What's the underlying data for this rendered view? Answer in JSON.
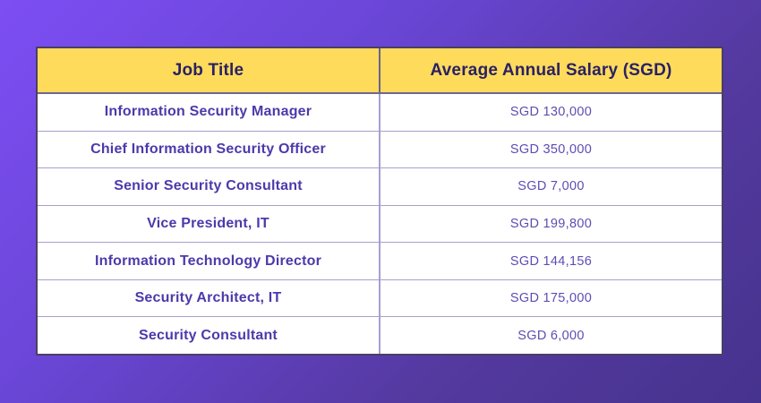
{
  "page": {
    "background_gradient_from": "#7D4EF4",
    "background_gradient_to": "#46338E",
    "header_bg_color": "#FFDB5C",
    "header_text_color": "#2A2163",
    "row_title_color": "#4D39AB",
    "row_salary_color": "#5D4DB3"
  },
  "table": {
    "columns": [
      {
        "label": "Job Title"
      },
      {
        "label": "Average Annual Salary (SGD)"
      }
    ],
    "rows": [
      {
        "title": "Information Security Manager",
        "salary": "SGD 130,000"
      },
      {
        "title": "Chief Information Security Officer",
        "salary": "SGD 350,000"
      },
      {
        "title": "Senior Security Consultant",
        "salary": "SGD 7,000"
      },
      {
        "title": "Vice President, IT",
        "salary": "SGD 199,800"
      },
      {
        "title": "Information Technology Director",
        "salary": "SGD 144,156"
      },
      {
        "title": "Security Architect, IT",
        "salary": "SGD 175,000"
      },
      {
        "title": "Security Consultant",
        "salary": "SGD 6,000"
      }
    ]
  },
  "chart_data": {
    "type": "table",
    "title": "",
    "columns": [
      "Job Title",
      "Average Annual Salary (SGD)"
    ],
    "rows": [
      [
        "Information Security Manager",
        "SGD 130,000"
      ],
      [
        "Chief Information Security Officer",
        "SGD 350,000"
      ],
      [
        "Senior Security Consultant",
        "SGD 7,000"
      ],
      [
        "Vice President, IT",
        "SGD 199,800"
      ],
      [
        "Information Technology Director",
        "SGD 144,156"
      ],
      [
        "Security Architect, IT",
        "SGD 175,000"
      ],
      [
        "Security Consultant",
        "SGD 6,000"
      ]
    ],
    "values_sgd": [
      130000,
      350000,
      7000,
      199800,
      144156,
      175000,
      6000
    ],
    "layout": "two-column centered table, yellow header band, white body rows, purple gradient page background"
  }
}
